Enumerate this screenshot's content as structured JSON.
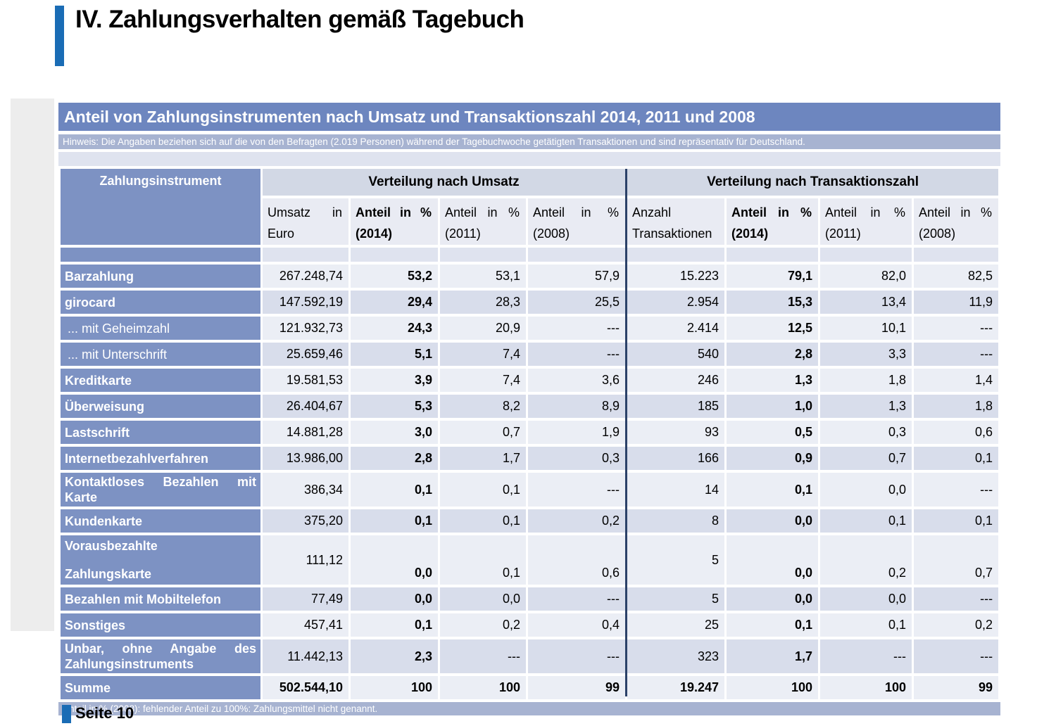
{
  "page": {
    "title": "IV. Zahlungsverhalten gemäß Tagebuch",
    "page_number": "Seite 10"
  },
  "colors": {
    "accent_blue": "#1a6cb5",
    "table_title_band": "#6d86bf",
    "note_band": "#a7b3d1",
    "name_column_blue": "#7d92c3",
    "group_header_band": "#d2d8e5",
    "subheader_bg": "#e9ebf3",
    "row_light": "#ebeef5",
    "row_dark": "#d8ddeb",
    "divider_navy": "#2b4168",
    "gray_strip": "#ededed"
  },
  "table": {
    "title": "Anteil von Zahlungsinstrumenten nach Umsatz und Transaktionszahl 2014, 2011 und 2008",
    "note": "Hinweis: Die Angaben beziehen sich auf die von den Befragten (2.019 Personen) während der Tagebuchwoche getätigten Transaktionen und sind repräsentativ für Deutschland.",
    "corner_header": "Zahlungsinstrument",
    "groups": [
      {
        "label": "Verteilung nach Umsatz"
      },
      {
        "label": "Verteilung nach Transaktionszahl"
      }
    ],
    "columns": [
      {
        "line1": "Umsatz in",
        "line2": "Euro",
        "bold": false
      },
      {
        "line1": "Anteil in %",
        "line2": "(2014)",
        "bold": true
      },
      {
        "line1": "Anteil in %",
        "line2": "(2011)",
        "bold": false
      },
      {
        "line1": "Anteil in %",
        "line2": "(2008)",
        "bold": false
      },
      {
        "line1": "Anzahl",
        "line2": "Transaktionen",
        "bold": false
      },
      {
        "line1": "Anteil in %",
        "line2": "(2014)",
        "bold": true
      },
      {
        "line1": "Anteil in %",
        "line2": "(2011)",
        "bold": false
      },
      {
        "line1": "Anteil in %",
        "line2": "(2008)",
        "bold": false
      }
    ],
    "rows": [
      {
        "label": "Barzahlung",
        "sub": false,
        "variant": null,
        "values": [
          "267.248,74",
          "53,2",
          "53,1",
          "57,9",
          "15.223",
          "79,1",
          "82,0",
          "82,5"
        ]
      },
      {
        "label": "girocard",
        "sub": false,
        "variant": null,
        "values": [
          "147.592,19",
          "29,4",
          "28,3",
          "25,5",
          "2.954",
          "15,3",
          "13,4",
          "11,9"
        ]
      },
      {
        "label": "... mit Geheimzahl",
        "sub": true,
        "variant": null,
        "values": [
          "121.932,73",
          "24,3",
          "20,9",
          "---",
          "2.414",
          "12,5",
          "10,1",
          "---"
        ]
      },
      {
        "label": "... mit Unterschrift",
        "sub": true,
        "variant": null,
        "values": [
          "25.659,46",
          "5,1",
          "7,4",
          "---",
          "540",
          "2,8",
          "3,3",
          "---"
        ]
      },
      {
        "label": "Kreditkarte",
        "sub": false,
        "variant": null,
        "values": [
          "19.581,53",
          "3,9",
          "7,4",
          "3,6",
          "246",
          "1,3",
          "1,8",
          "1,4"
        ]
      },
      {
        "label": "Überweisung",
        "sub": false,
        "variant": null,
        "values": [
          "26.404,67",
          "5,3",
          "8,2",
          "8,9",
          "185",
          "1,0",
          "1,3",
          "1,8"
        ]
      },
      {
        "label": "Lastschrift",
        "sub": false,
        "variant": null,
        "values": [
          "14.881,28",
          "3,0",
          "0,7",
          "1,9",
          "93",
          "0,5",
          "0,3",
          "0,6"
        ]
      },
      {
        "label": "Internetbezahlverfahren",
        "sub": false,
        "variant": null,
        "values": [
          "13.986,00",
          "2,8",
          "1,7",
          "0,3",
          "166",
          "0,9",
          "0,7",
          "0,1"
        ]
      },
      {
        "label": "Kontaktloses Bezahlen mit Karte",
        "sub": false,
        "variant": "wrap",
        "values": [
          "386,34",
          "0,1",
          "0,1",
          "---",
          "14",
          "0,1",
          "0,0",
          "---"
        ]
      },
      {
        "label": "Kundenkarte",
        "sub": false,
        "variant": null,
        "values": [
          "375,20",
          "0,1",
          "0,1",
          "0,2",
          "8",
          "0,0",
          "0,1",
          "0,1"
        ]
      },
      {
        "label": "Vorausbezahlte Zahlungskarte",
        "label_lines": [
          "Vorausbezahlte",
          "Zahlungskarte"
        ],
        "sub": false,
        "variant": "split",
        "values": [
          "111,12",
          "0,0",
          "0,1",
          "0,6",
          "5",
          "0,0",
          "0,2",
          "0,7"
        ]
      },
      {
        "label": "Bezahlen mit Mobiltelefon",
        "sub": false,
        "variant": null,
        "values": [
          "77,49",
          "0,0",
          "0,0",
          "---",
          "5",
          "0,0",
          "0,0",
          "---"
        ]
      },
      {
        "label": "Sonstiges",
        "sub": false,
        "variant": null,
        "values": [
          "457,41",
          "0,1",
          "0,2",
          "0,4",
          "25",
          "0,1",
          "0,1",
          "0,2"
        ]
      },
      {
        "label": "Unbar, ohne Angabe des Zahlungsinstruments",
        "sub": false,
        "variant": "wrap",
        "values": [
          "11.442,13",
          "2,3",
          "---",
          "---",
          "323",
          "1,7",
          "---",
          "---"
        ]
      },
      {
        "label": "Summe",
        "sub": false,
        "variant": "total",
        "values": [
          "502.544,10",
          "100",
          "100",
          "99",
          "19.247",
          "100",
          "100",
          "99"
        ]
      }
    ],
    "footnote": "Anteil in % (2008): fehlender Anteil zu 100%: Zahlungsmittel nicht genannt."
  }
}
